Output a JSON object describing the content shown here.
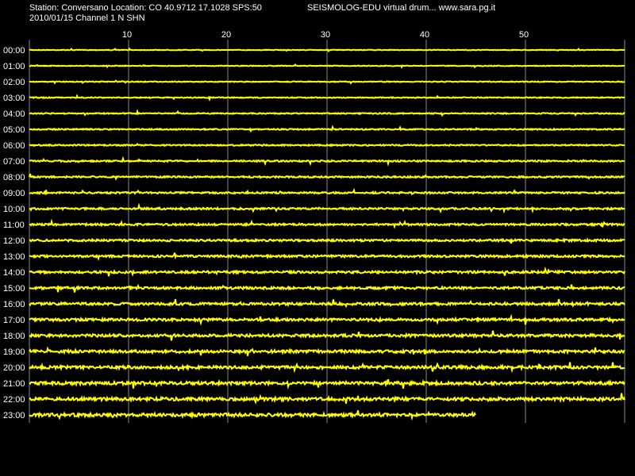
{
  "header": {
    "station": "Station: Conversano Location: CO 40.9712 17.1028 SPS:50",
    "date_channel": "2010/01/15  Channel 1 N SHN",
    "app": "SEISMOLOG-EDU virtual drum... www.sara.pg.it"
  },
  "x_axis": {
    "lim": [
      0,
      60
    ],
    "ticks": [
      10,
      20,
      30,
      40,
      50
    ]
  },
  "rows": [
    "00:00",
    "01:00",
    "02:00",
    "03:00",
    "04:00",
    "05:00",
    "06:00",
    "07:00",
    "08:00",
    "09:00",
    "10:00",
    "11:00",
    "12:00",
    "13:00",
    "14:00",
    "15:00",
    "16:00",
    "17:00",
    "18:00",
    "19:00",
    "20:00",
    "21:00",
    "22:00",
    "23:00"
  ],
  "last_row_end_minute": 45
}
